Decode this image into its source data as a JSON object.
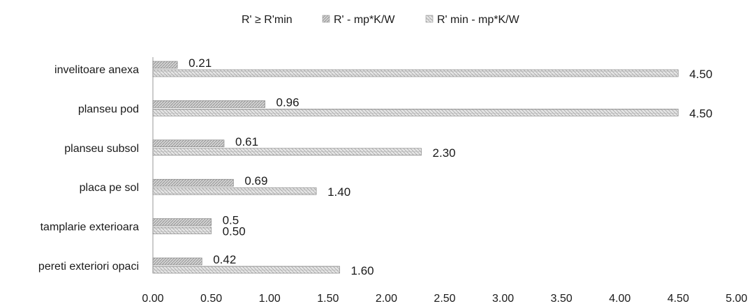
{
  "chart_data": {
    "type": "bar",
    "orientation": "horizontal",
    "categories": [
      "invelitoare anexa",
      "planseu pod",
      "planseu subsol",
      "placa pe sol",
      "tamplarie exterioara",
      "pereti exteriori opaci"
    ],
    "series": [
      {
        "name": "R' - mp*K/W",
        "values": [
          0.21,
          0.96,
          0.61,
          0.69,
          0.5,
          0.42
        ],
        "labels": [
          "0.21",
          "0.96",
          "0.61",
          "0.69",
          "0.5",
          "0.42"
        ],
        "color": "#c8c8c8"
      },
      {
        "name": "R' min - mp*K/W",
        "values": [
          4.5,
          4.5,
          2.3,
          1.4,
          0.5,
          1.6
        ],
        "labels": [
          "4.50",
          "4.50",
          "2.30",
          "1.40",
          "0.50",
          "1.60"
        ],
        "color": "#d8d8d8"
      }
    ],
    "legend_extra": "R' ≥ R'min",
    "xlim": [
      0,
      5
    ],
    "xticks": [
      "0.00",
      "0.50",
      "1.00",
      "1.50",
      "2.00",
      "2.50",
      "3.00",
      "3.50",
      "4.00",
      "4.50",
      "5.00"
    ],
    "grid": false,
    "legend_position": "top"
  }
}
